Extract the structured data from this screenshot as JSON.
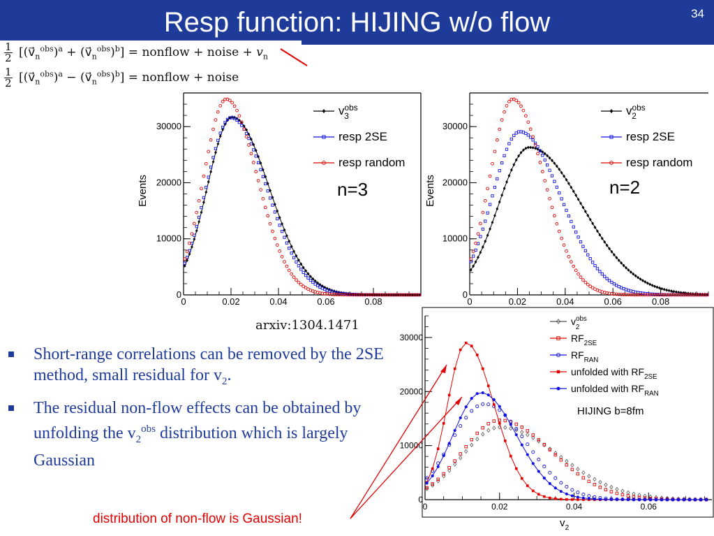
{
  "slide": {
    "title": "Resp function: HIJING w/o flow",
    "number": "34"
  },
  "formulas": [
    {
      "frac_num": "1",
      "frac_den": "2",
      "lhs": "[(v⃗",
      "rhs": "=  nonflow + noise + ",
      "tail": "v",
      "op": "+",
      "struck": true
    },
    {
      "frac_num": "1",
      "frac_den": "2",
      "lhs": "[(v⃗",
      "rhs": "=  nonflow + noise",
      "tail": "",
      "op": "−",
      "struck": false
    }
  ],
  "formula_parts": {
    "obs": "obs",
    "a": "a",
    "b": "b",
    "n": "n"
  },
  "source": "arxiv:1304.1471",
  "bullets": [
    {
      "text": "Short-range correlations can be removed by the 2SE method, small residual for v",
      "sub": "2",
      "end": "."
    },
    {
      "text": "The residual non-flow effects can be obtained by unfolding the v",
      "sub": "2",
      "sup": "obs",
      "end": " distribution which is largely Gaussian"
    }
  ],
  "bottom_note": "distribution of non-flow is Gaussian!",
  "colors": {
    "header": "#1f3b9a",
    "obs": "#000000",
    "resp2se": "#1010e0",
    "random": "#e00000",
    "note": "#e00000"
  },
  "chart_data": [
    {
      "type": "scatter",
      "ylabel": "Events",
      "annotation": "n=3",
      "xlim": [
        0,
        0.1
      ],
      "ylim": [
        0,
        36000
      ],
      "xticks": [
        "0",
        "0.02",
        "0.04",
        "0.06",
        "0.08"
      ],
      "yticks": [
        "0",
        "10000",
        "20000",
        "30000"
      ],
      "legend": [
        "v3obs",
        "resp 2SE",
        "resp random"
      ],
      "legend_position": "top-right",
      "series": [
        {
          "name": "v3obs",
          "peak_x": 0.0205,
          "peak_y": 31700,
          "sigma_left": 0.0105,
          "sigma_right": 0.0155
        },
        {
          "name": "resp 2SE",
          "peak_x": 0.02,
          "peak_y": 31600,
          "sigma_left": 0.0105,
          "sigma_right": 0.015
        },
        {
          "name": "resp random",
          "peak_x": 0.018,
          "peak_y": 34900,
          "sigma_left": 0.0095,
          "sigma_right": 0.013
        }
      ]
    },
    {
      "type": "scatter",
      "ylabel": "Events",
      "annotation": "n=2",
      "xlim": [
        0,
        0.1
      ],
      "ylim": [
        0,
        36000
      ],
      "xticks": [
        "0",
        "0.02",
        "0.04",
        "0.06",
        "0.08"
      ],
      "yticks": [
        "0",
        "10000",
        "20000",
        "30000"
      ],
      "legend": [
        "v2obs",
        "resp 2SE",
        "resp random"
      ],
      "legend_position": "top-right",
      "series": [
        {
          "name": "v2obs",
          "peak_x": 0.025,
          "peak_y": 26300,
          "sigma_left": 0.013,
          "sigma_right": 0.022
        },
        {
          "name": "resp 2SE",
          "peak_x": 0.021,
          "peak_y": 29100,
          "sigma_left": 0.0115,
          "sigma_right": 0.017
        },
        {
          "name": "resp random",
          "peak_x": 0.018,
          "peak_y": 34900,
          "sigma_left": 0.0095,
          "sigma_right": 0.013
        }
      ]
    },
    {
      "type": "scatter",
      "xlabel": "v2",
      "annotation": "HIJING b=8fm",
      "xlim": [
        0,
        0.077
      ],
      "ylim": [
        0,
        34000
      ],
      "xticks": [
        "0",
        "0.02",
        "0.04",
        "0.06"
      ],
      "yticks": [
        "0",
        "10000",
        "20000",
        "30000"
      ],
      "legend": [
        "v2obs",
        "RF2SE",
        "RFRAN",
        "unfolded with RF2SE",
        "unfolded with RFRAN"
      ],
      "legend_position": "top-right",
      "series": [
        {
          "name": "v2obs",
          "peak_x": 0.02,
          "peak_y": 13400,
          "sigma_left": 0.01,
          "sigma_right": 0.016
        },
        {
          "name": "RF2SE",
          "peak_x": 0.02,
          "peak_y": 14700,
          "sigma_left": 0.01,
          "sigma_right": 0.014
        },
        {
          "name": "RFRAN",
          "peak_x": 0.016,
          "peak_y": 17700,
          "sigma_left": 0.009,
          "sigma_right": 0.011
        },
        {
          "name": "unfolded with RF2SE",
          "peak_x": 0.011,
          "peak_y": 29000,
          "sigma_left": 0.005,
          "sigma_right": 0.0075
        },
        {
          "name": "unfolded with RFRAN",
          "peak_x": 0.015,
          "peak_y": 19800,
          "sigma_left": 0.0075,
          "sigma_right": 0.0095
        }
      ]
    }
  ]
}
